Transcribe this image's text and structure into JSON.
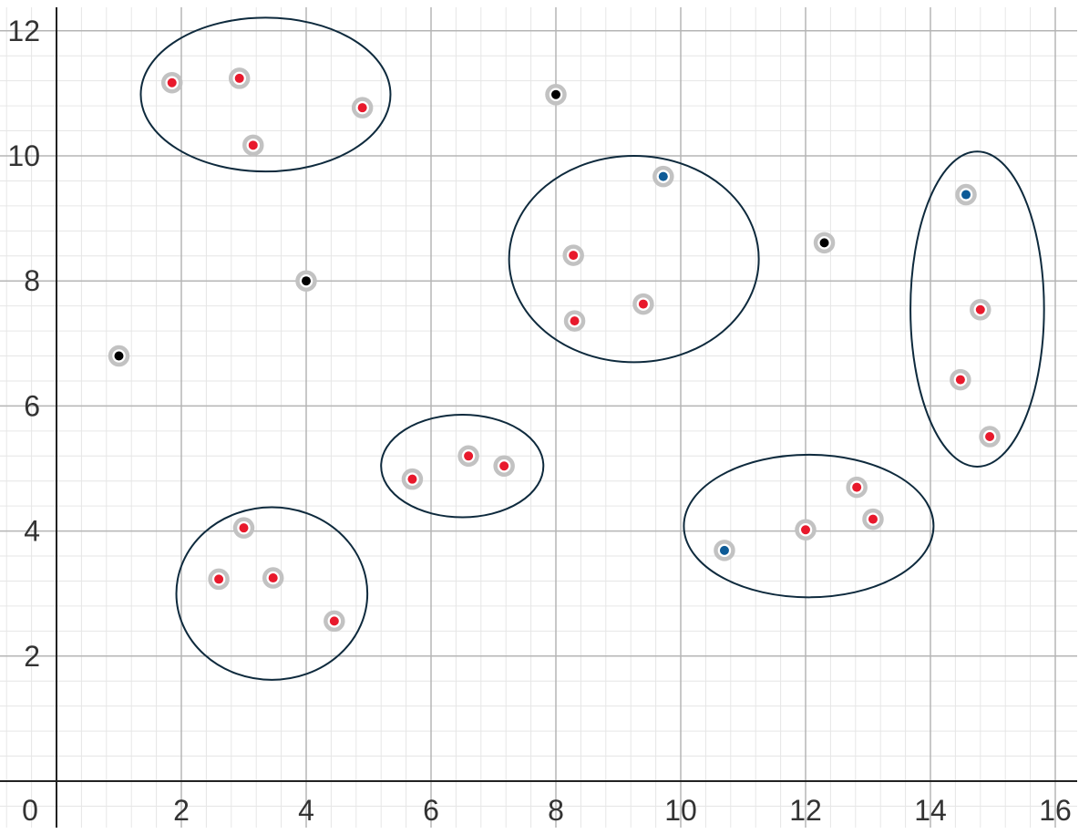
{
  "chart_data": {
    "type": "scatter",
    "xlim": [
      0,
      16
    ],
    "ylim": [
      0,
      12
    ],
    "x_ticks": [
      {
        "value": 0,
        "label": "0"
      },
      {
        "value": 2,
        "label": "2"
      },
      {
        "value": 4,
        "label": "4"
      },
      {
        "value": 6,
        "label": "6"
      },
      {
        "value": 8,
        "label": "8"
      },
      {
        "value": 10,
        "label": "10"
      },
      {
        "value": 12,
        "label": "12"
      },
      {
        "value": 14,
        "label": "14"
      },
      {
        "value": 16,
        "label": "16"
      }
    ],
    "y_ticks": [
      {
        "value": 2,
        "label": "2"
      },
      {
        "value": 4,
        "label": "4"
      },
      {
        "value": 6,
        "label": "6"
      },
      {
        "value": 8,
        "label": "8"
      },
      {
        "value": 10,
        "label": "10"
      },
      {
        "value": 12,
        "label": "12"
      }
    ],
    "major_grid_step": 2,
    "minor_grid_step": 0.4,
    "grid": true,
    "colors": {
      "red": "#e8192c",
      "blue": "#0d5a96",
      "black": "#000000",
      "halo": "#c2c2c2",
      "ellipse": "#0e2a3d",
      "axis": "#222222",
      "major_grid": "#b5b5b5",
      "minor_grid": "#e6e6e6"
    },
    "series": [
      {
        "color_key": "red",
        "points": [
          [
            1.85,
            11.17
          ],
          [
            2.93,
            11.24
          ],
          [
            3.15,
            10.17
          ],
          [
            4.9,
            10.77
          ],
          [
            8.28,
            8.41
          ],
          [
            8.3,
            7.36
          ],
          [
            9.4,
            7.63
          ],
          [
            5.7,
            4.83
          ],
          [
            6.6,
            5.2
          ],
          [
            7.17,
            5.04
          ],
          [
            2.6,
            3.23
          ],
          [
            3.0,
            4.05
          ],
          [
            3.47,
            3.25
          ],
          [
            4.45,
            2.56
          ],
          [
            12.0,
            4.02
          ],
          [
            12.82,
            4.7
          ],
          [
            13.08,
            4.19
          ],
          [
            14.8,
            7.54
          ],
          [
            14.48,
            6.42
          ],
          [
            14.95,
            5.51
          ]
        ]
      },
      {
        "color_key": "blue",
        "points": [
          [
            9.72,
            9.67
          ],
          [
            10.7,
            3.69
          ],
          [
            14.57,
            9.38
          ]
        ]
      },
      {
        "color_key": "black",
        "points": [
          [
            1.0,
            6.8
          ],
          [
            4.0,
            8.0
          ],
          [
            8.0,
            10.98
          ],
          [
            12.3,
            8.61
          ]
        ]
      }
    ],
    "ellipses": [
      {
        "cx": 3.35,
        "cy": 10.98,
        "rx": 2.0,
        "ry": 1.23
      },
      {
        "cx": 9.25,
        "cy": 8.35,
        "rx": 2.0,
        "ry": 1.65
      },
      {
        "cx": 6.5,
        "cy": 5.04,
        "rx": 1.3,
        "ry": 0.82
      },
      {
        "cx": 3.45,
        "cy": 3.0,
        "rx": 1.53,
        "ry": 1.38
      },
      {
        "cx": 12.05,
        "cy": 4.08,
        "rx": 2.0,
        "ry": 1.14
      },
      {
        "cx": 14.75,
        "cy": 7.55,
        "rx": 1.07,
        "ry": 2.52
      }
    ]
  }
}
